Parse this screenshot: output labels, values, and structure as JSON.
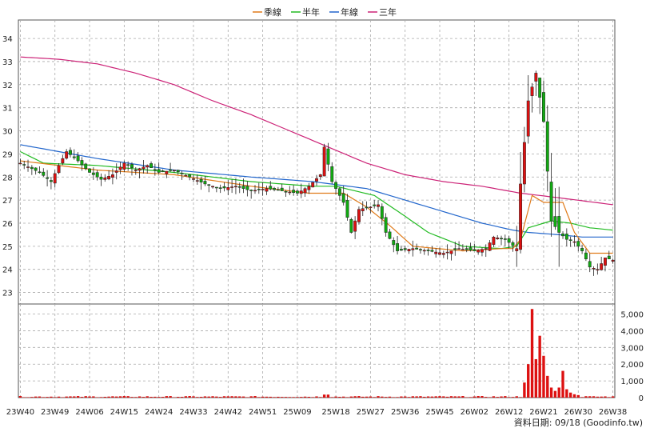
{
  "chart_data": {
    "type": "candlestick",
    "legend": [
      {
        "name": "季線",
        "color": "#e07b1a"
      },
      {
        "name": "半年",
        "color": "#22bb22"
      },
      {
        "name": "年線",
        "color": "#2266cc"
      },
      {
        "name": "三年",
        "color": "#cc2277"
      }
    ],
    "price_axis": {
      "ylim": [
        22.5,
        34.8
      ],
      "ticks": [
        23,
        24,
        25,
        26,
        27,
        28,
        29,
        30,
        31,
        32,
        33,
        34
      ]
    },
    "volume_axis": {
      "ylim": [
        0,
        5600
      ],
      "ticks": [
        0,
        1000,
        2000,
        3000,
        4000,
        5000
      ],
      "tick_labels": [
        "0",
        "1,000",
        "2,000",
        "3,000",
        "4,000",
        "5,000"
      ]
    },
    "x_labels": [
      "23W40",
      "23W49",
      "24W06",
      "24W15",
      "24W24",
      "24W33",
      "24W42",
      "24W51",
      "25W09",
      "25W18",
      "25W27",
      "25W36",
      "25W45",
      "26W02",
      "26W12",
      "26W21",
      "26W30",
      "26W38"
    ],
    "footer": "資料日期: 09/18  (Goodinfo.tw)",
    "weeks": 155,
    "price_anchors": [
      [
        0,
        28.6
      ],
      [
        5,
        28.2
      ],
      [
        8,
        27.8
      ],
      [
        10,
        28.5
      ],
      [
        12,
        29.1
      ],
      [
        15,
        28.7
      ],
      [
        18,
        28.2
      ],
      [
        21,
        27.9
      ],
      [
        24,
        28.1
      ],
      [
        27,
        28.6
      ],
      [
        30,
        28.3
      ],
      [
        33,
        28.5
      ],
      [
        36,
        28.2
      ],
      [
        40,
        28.3
      ],
      [
        44,
        28.0
      ],
      [
        48,
        27.7
      ],
      [
        52,
        27.5
      ],
      [
        56,
        27.6
      ],
      [
        60,
        27.4
      ],
      [
        64,
        27.5
      ],
      [
        68,
        27.4
      ],
      [
        72,
        27.3
      ],
      [
        75,
        27.6
      ],
      [
        78,
        28.1
      ],
      [
        79,
        29.3
      ],
      [
        81,
        27.8
      ],
      [
        84,
        26.9
      ],
      [
        86,
        25.6
      ],
      [
        88,
        26.6
      ],
      [
        91,
        26.7
      ],
      [
        93,
        26.8
      ],
      [
        95,
        25.6
      ],
      [
        98,
        24.8
      ],
      [
        102,
        24.9
      ],
      [
        106,
        24.8
      ],
      [
        110,
        24.7
      ],
      [
        114,
        24.9
      ],
      [
        118,
        24.8
      ],
      [
        121,
        24.9
      ],
      [
        123,
        25.4
      ],
      [
        126,
        25.3
      ],
      [
        129,
        24.9
      ],
      [
        130,
        27.7
      ],
      [
        132,
        31.3
      ],
      [
        134,
        32.5
      ],
      [
        136,
        30.4
      ],
      [
        138,
        26.1
      ],
      [
        140,
        25.6
      ],
      [
        142,
        25.3
      ],
      [
        144,
        25.2
      ],
      [
        146,
        24.8
      ],
      [
        148,
        24.1
      ],
      [
        150,
        24.0
      ],
      [
        152,
        24.5
      ],
      [
        154,
        24.4
      ]
    ],
    "ma_quarter": [
      [
        0,
        28.7
      ],
      [
        20,
        28.3
      ],
      [
        40,
        28.1
      ],
      [
        60,
        27.6
      ],
      [
        75,
        27.3
      ],
      [
        84,
        27.3
      ],
      [
        90,
        26.7
      ],
      [
        96,
        25.9
      ],
      [
        102,
        25.0
      ],
      [
        115,
        24.8
      ],
      [
        125,
        24.9
      ],
      [
        128,
        24.9
      ],
      [
        130,
        25.3
      ],
      [
        133,
        27.2
      ],
      [
        136,
        26.9
      ],
      [
        141,
        26.9
      ],
      [
        144,
        25.6
      ],
      [
        148,
        24.7
      ],
      [
        154,
        24.7
      ]
    ],
    "ma_half": [
      [
        0,
        29.1
      ],
      [
        6,
        28.6
      ],
      [
        20,
        28.5
      ],
      [
        40,
        28.2
      ],
      [
        60,
        27.8
      ],
      [
        76,
        27.6
      ],
      [
        82,
        27.6
      ],
      [
        92,
        27.2
      ],
      [
        100,
        26.3
      ],
      [
        106,
        25.6
      ],
      [
        115,
        25.0
      ],
      [
        125,
        24.9
      ],
      [
        129,
        25.0
      ],
      [
        132,
        25.8
      ],
      [
        138,
        26.1
      ],
      [
        143,
        26.0
      ],
      [
        148,
        25.8
      ],
      [
        154,
        25.7
      ]
    ],
    "ma_year": [
      [
        0,
        29.4
      ],
      [
        20,
        28.8
      ],
      [
        40,
        28.3
      ],
      [
        60,
        28.0
      ],
      [
        76,
        27.8
      ],
      [
        90,
        27.5
      ],
      [
        100,
        27.0
      ],
      [
        110,
        26.5
      ],
      [
        120,
        26.0
      ],
      [
        128,
        25.7
      ],
      [
        132,
        25.6
      ],
      [
        140,
        25.5
      ],
      [
        146,
        25.4
      ],
      [
        154,
        25.4
      ]
    ],
    "ma_three": [
      [
        0,
        33.2
      ],
      [
        10,
        33.1
      ],
      [
        20,
        32.9
      ],
      [
        30,
        32.5
      ],
      [
        40,
        32.0
      ],
      [
        50,
        31.3
      ],
      [
        60,
        30.7
      ],
      [
        70,
        30.0
      ],
      [
        80,
        29.3
      ],
      [
        90,
        28.6
      ],
      [
        100,
        28.1
      ],
      [
        110,
        27.8
      ],
      [
        120,
        27.6
      ],
      [
        130,
        27.3
      ],
      [
        140,
        27.1
      ],
      [
        154,
        26.8
      ]
    ],
    "volume_spikes": [
      [
        131,
        900
      ],
      [
        132,
        2000
      ],
      [
        133,
        5300
      ],
      [
        134,
        2300
      ],
      [
        135,
        3700
      ],
      [
        136,
        2500
      ],
      [
        137,
        1300
      ],
      [
        138,
        600
      ],
      [
        139,
        400
      ],
      [
        140,
        600
      ],
      [
        141,
        1600
      ],
      [
        142,
        500
      ],
      [
        143,
        300
      ],
      [
        144,
        200
      ],
      [
        145,
        150
      ]
    ],
    "volume_base": 60
  }
}
